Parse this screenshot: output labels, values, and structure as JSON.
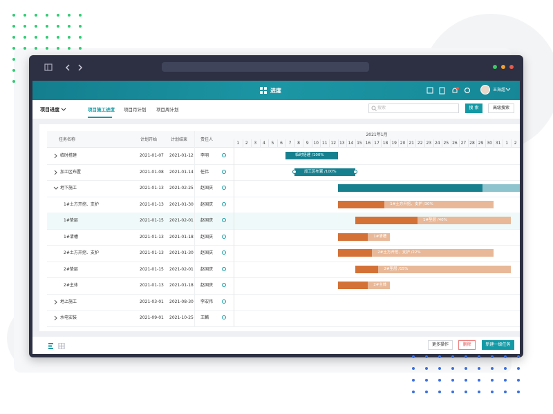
{
  "app": {
    "title": "进度",
    "user": "王海超",
    "nav": {
      "project": "项目进度",
      "tabs": [
        "项目施工进度",
        "项目月计划",
        "项目周计划"
      ],
      "active_tab": 0,
      "search_placeholder": "搜索",
      "search_button": "搜 索",
      "advanced_search": "高级搜索"
    },
    "table": {
      "columns": [
        "任务名称",
        "计划开始",
        "计划结束",
        "责任人"
      ],
      "rows": [
        {
          "name": "临时搭建",
          "start": "2021-01-07",
          "end": "2021-01-12",
          "owner": "李明",
          "level": 0,
          "expand": "collapsed",
          "bar": {
            "label": "临时搭建 /100%",
            "progress": 100,
            "color": "teal"
          }
        },
        {
          "name": "加工区布置",
          "start": "2021-01-08",
          "end": "2021-01-14",
          "owner": "任伟",
          "level": 0,
          "expand": "collapsed",
          "bar": {
            "label": "加工区布置 /100%",
            "progress": 100,
            "color": "teal",
            "selected": true
          }
        },
        {
          "name": "地下施工",
          "start": "2021-01-13",
          "end": "2021-02-25",
          "owner": "赵国庆",
          "level": 0,
          "expand": "expanded",
          "bar": {
            "progress": 38,
            "color": "teal"
          }
        },
        {
          "name": "1#土方开挖、支护",
          "start": "2021-01-13",
          "end": "2021-01-30",
          "owner": "赵国庆",
          "level": 1,
          "bar": {
            "label": "1#土方开挖、支护 /30%",
            "progress": 30,
            "color": "orange"
          }
        },
        {
          "name": "1#垫层",
          "start": "2021-01-15",
          "end": "2021-02-01",
          "owner": "赵国庆",
          "level": 1,
          "highlight": true,
          "bar": {
            "label": "1#垫层 /40%",
            "progress": 40,
            "color": "orange"
          }
        },
        {
          "name": "1#清槽",
          "start": "2021-01-13",
          "end": "2021-01-18",
          "owner": "赵国庆",
          "level": 1,
          "bar": {
            "label": "1#清槽",
            "progress": 58,
            "color": "orange"
          }
        },
        {
          "name": "2#土方开挖、支护",
          "start": "2021-01-13",
          "end": "2021-01-30",
          "owner": "赵国庆",
          "level": 1,
          "bar": {
            "label": "2#土方开挖、支护 /22%",
            "progress": 22,
            "color": "orange"
          }
        },
        {
          "name": "2#垫层",
          "start": "2021-01-15",
          "end": "2021-02-01",
          "owner": "赵国庆",
          "level": 1,
          "bar": {
            "label": "2#垫层 /15%",
            "progress": 15,
            "color": "orange"
          }
        },
        {
          "name": "2#主体",
          "start": "2021-01-13",
          "end": "2021-01-18",
          "owner": "赵国庆",
          "level": 1,
          "bar": {
            "label": "2#主体",
            "progress": 58,
            "color": "orange"
          }
        },
        {
          "name": "地上施工",
          "start": "2021-03-01",
          "end": "2021-08-30",
          "owner": "李宏伟",
          "level": 0,
          "expand": "collapsed"
        },
        {
          "name": "水电安装",
          "start": "2021-09-01",
          "end": "2021-10-25",
          "owner": "王麟",
          "level": 0,
          "expand": "collapsed"
        }
      ]
    },
    "gantt": {
      "month": "2021年1月",
      "days": [
        1,
        2,
        3,
        4,
        5,
        6,
        7,
        8,
        9,
        10,
        11,
        12,
        13,
        14,
        15,
        16,
        17,
        18,
        19,
        20,
        21,
        22,
        23,
        24,
        25,
        26,
        27,
        28,
        29,
        30,
        31,
        1,
        2
      ]
    },
    "footer": {
      "more": "更多操作",
      "delete": "删除",
      "create": "新建一级任务"
    }
  }
}
